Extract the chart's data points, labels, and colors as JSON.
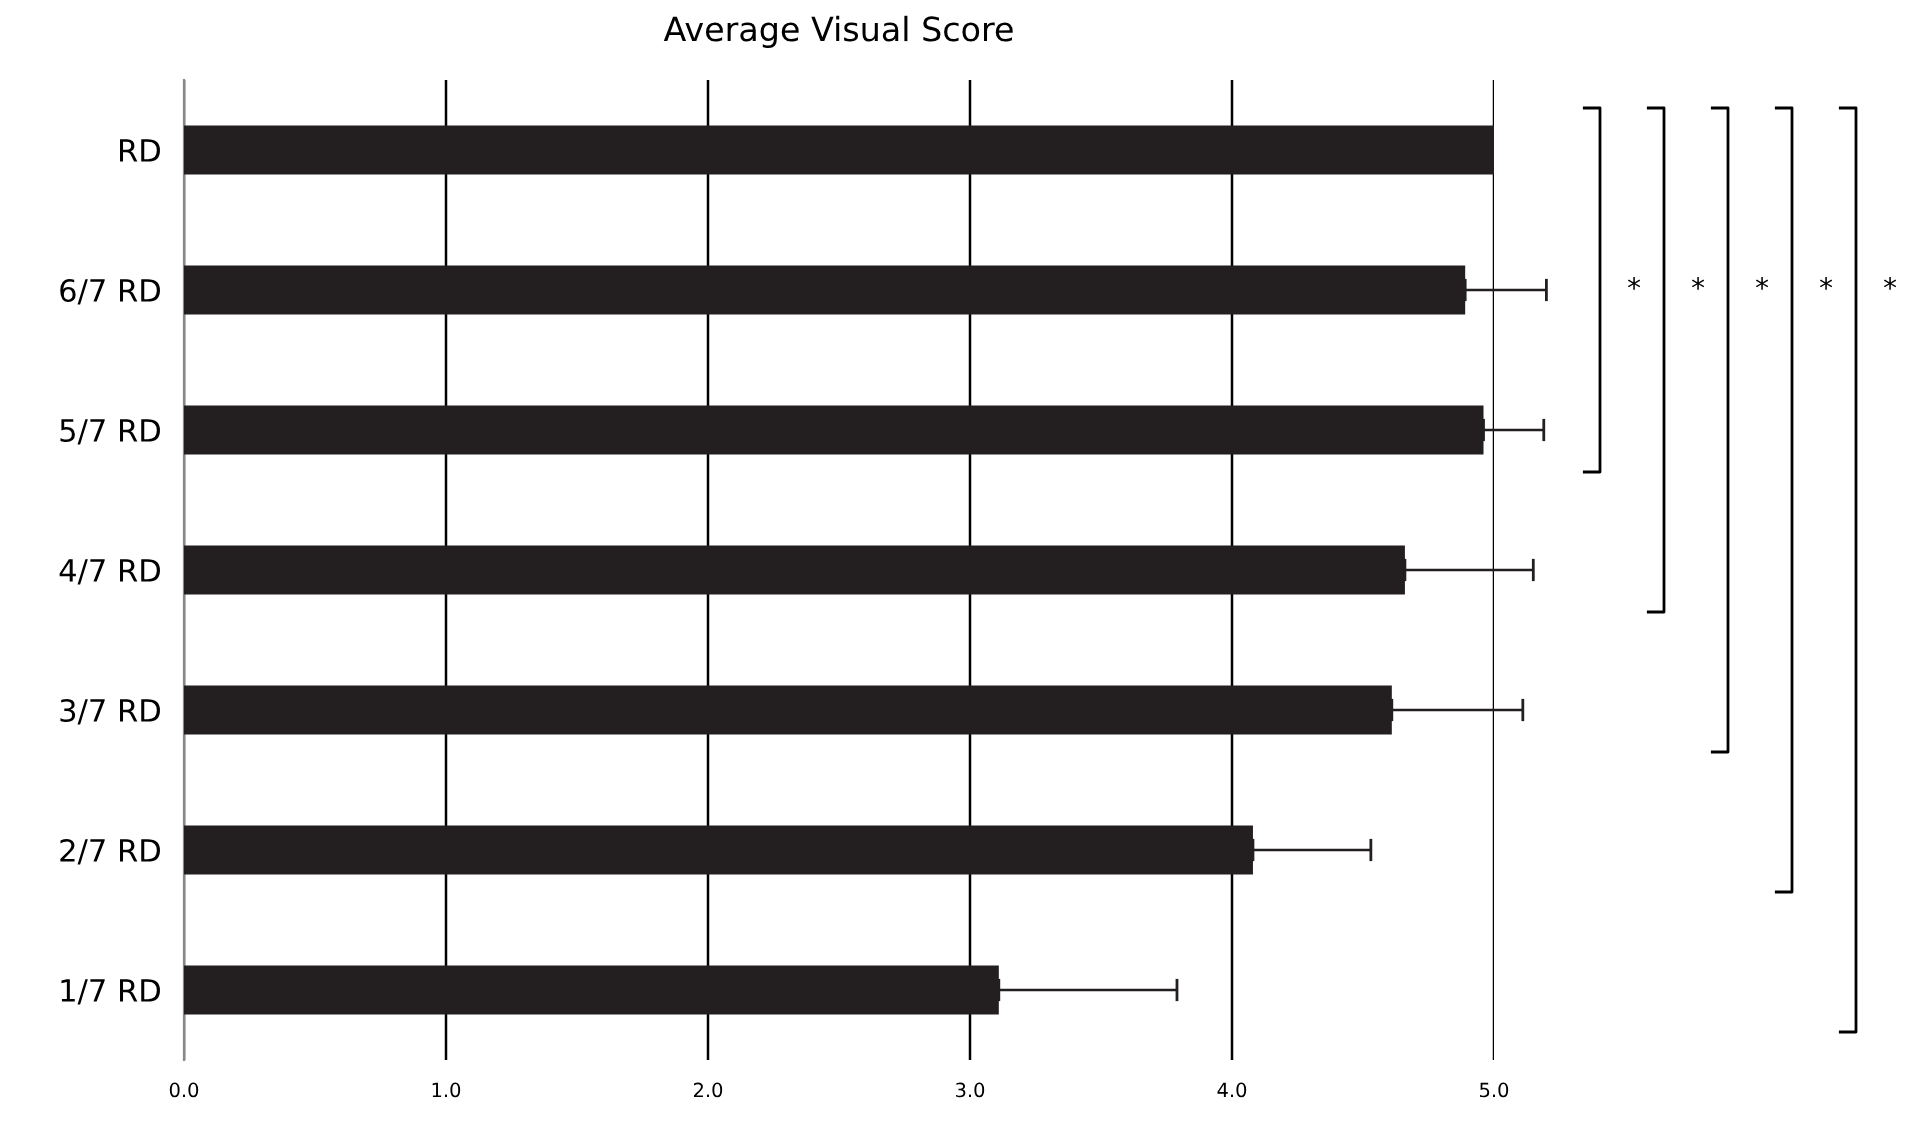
{
  "chart_data": {
    "type": "bar",
    "orientation": "horizontal",
    "title": "Average Visual Score",
    "categories": [
      "RD",
      "6/7 RD",
      "5/7 RD",
      "4/7 RD",
      "3/7 RD",
      "2/7 RD",
      "1/7 RD"
    ],
    "values": [
      5.0,
      4.89,
      4.96,
      4.66,
      4.61,
      4.08,
      3.11
    ],
    "errors": [
      null,
      [
        4.89,
        5.2
      ],
      [
        4.96,
        5.19
      ],
      [
        4.66,
        5.15
      ],
      [
        4.61,
        5.11
      ],
      [
        4.08,
        4.53
      ],
      [
        3.11,
        3.79
      ]
    ],
    "color": "#231f20",
    "xlim": [
      0,
      5
    ],
    "xticks": [
      {
        "value": 0,
        "label": "0.0"
      },
      {
        "value": 1,
        "label": "1.0"
      },
      {
        "value": 2,
        "label": "2.0"
      },
      {
        "value": 3,
        "label": "3.0"
      },
      {
        "value": 4,
        "label": "4.0"
      },
      {
        "value": 5,
        "label": "5.0"
      }
    ],
    "grid": "x",
    "annotations": [
      "*",
      "*",
      "*",
      "*",
      "*"
    ]
  }
}
